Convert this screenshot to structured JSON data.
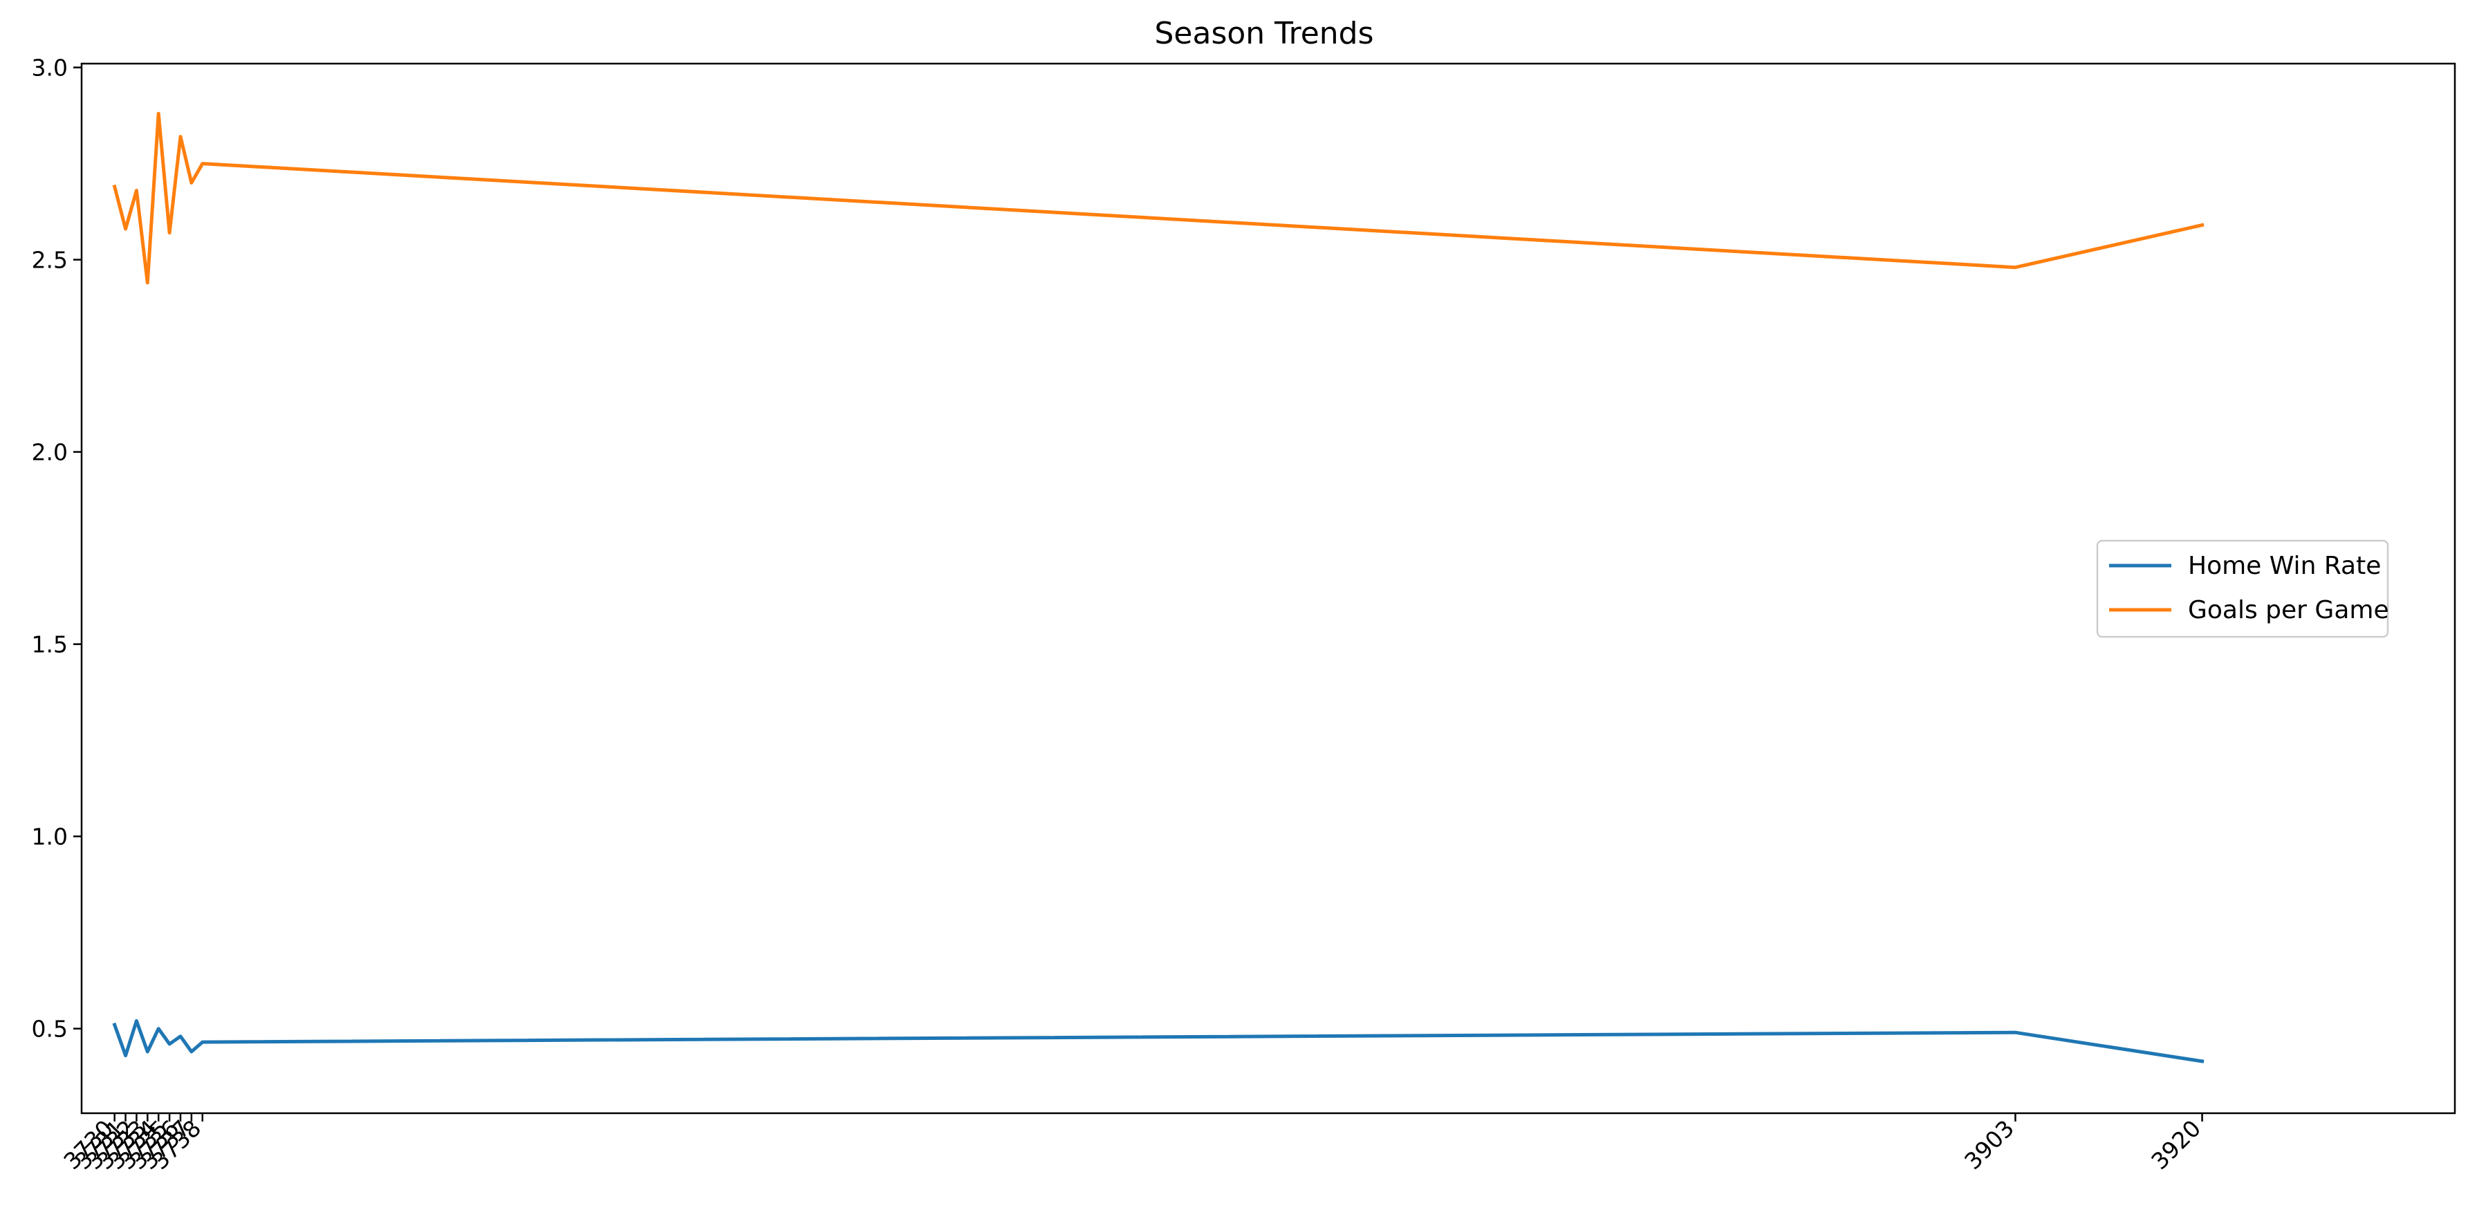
{
  "chart_data": {
    "type": "line",
    "title": "Season Trends",
    "xlabel": "",
    "ylabel": "",
    "xlim": [
      3727,
      3943
    ],
    "ylim": [
      0.28,
      3.01
    ],
    "y_ticks": [
      "0.5",
      "1.0",
      "1.5",
      "2.0",
      "2.5",
      "3.0"
    ],
    "x_ticks": [
      {
        "value": 3730,
        "label": "3730"
      },
      {
        "value": 3731,
        "label": "3731"
      },
      {
        "value": 3732,
        "label": "3732"
      },
      {
        "value": 3733,
        "label": "3733"
      },
      {
        "value": 3734,
        "label": "3734"
      },
      {
        "value": 3735,
        "label": "3735"
      },
      {
        "value": 3736,
        "label": "3736"
      },
      {
        "value": 3737,
        "label": "3737"
      },
      {
        "value": 3738,
        "label": "3738"
      },
      {
        "value": 3903,
        "label": "3903"
      },
      {
        "value": 3920,
        "label": "3920"
      }
    ],
    "grid": false,
    "legend_position": "center-right",
    "x": [
      3730,
      3731,
      3732,
      3733,
      3734,
      3735,
      3736,
      3737,
      3738,
      3903,
      3920
    ],
    "series": [
      {
        "name": "Home Win Rate",
        "color": "#1f77b4",
        "values": [
          0.51,
          0.43,
          0.52,
          0.44,
          0.5,
          0.46,
          0.48,
          0.44,
          0.465,
          0.49,
          0.415
        ]
      },
      {
        "name": "Goals per Game",
        "color": "#ff7f0e",
        "values": [
          2.69,
          2.58,
          2.68,
          2.44,
          2.88,
          2.57,
          2.82,
          2.7,
          2.75,
          2.48,
          2.59
        ]
      }
    ]
  }
}
